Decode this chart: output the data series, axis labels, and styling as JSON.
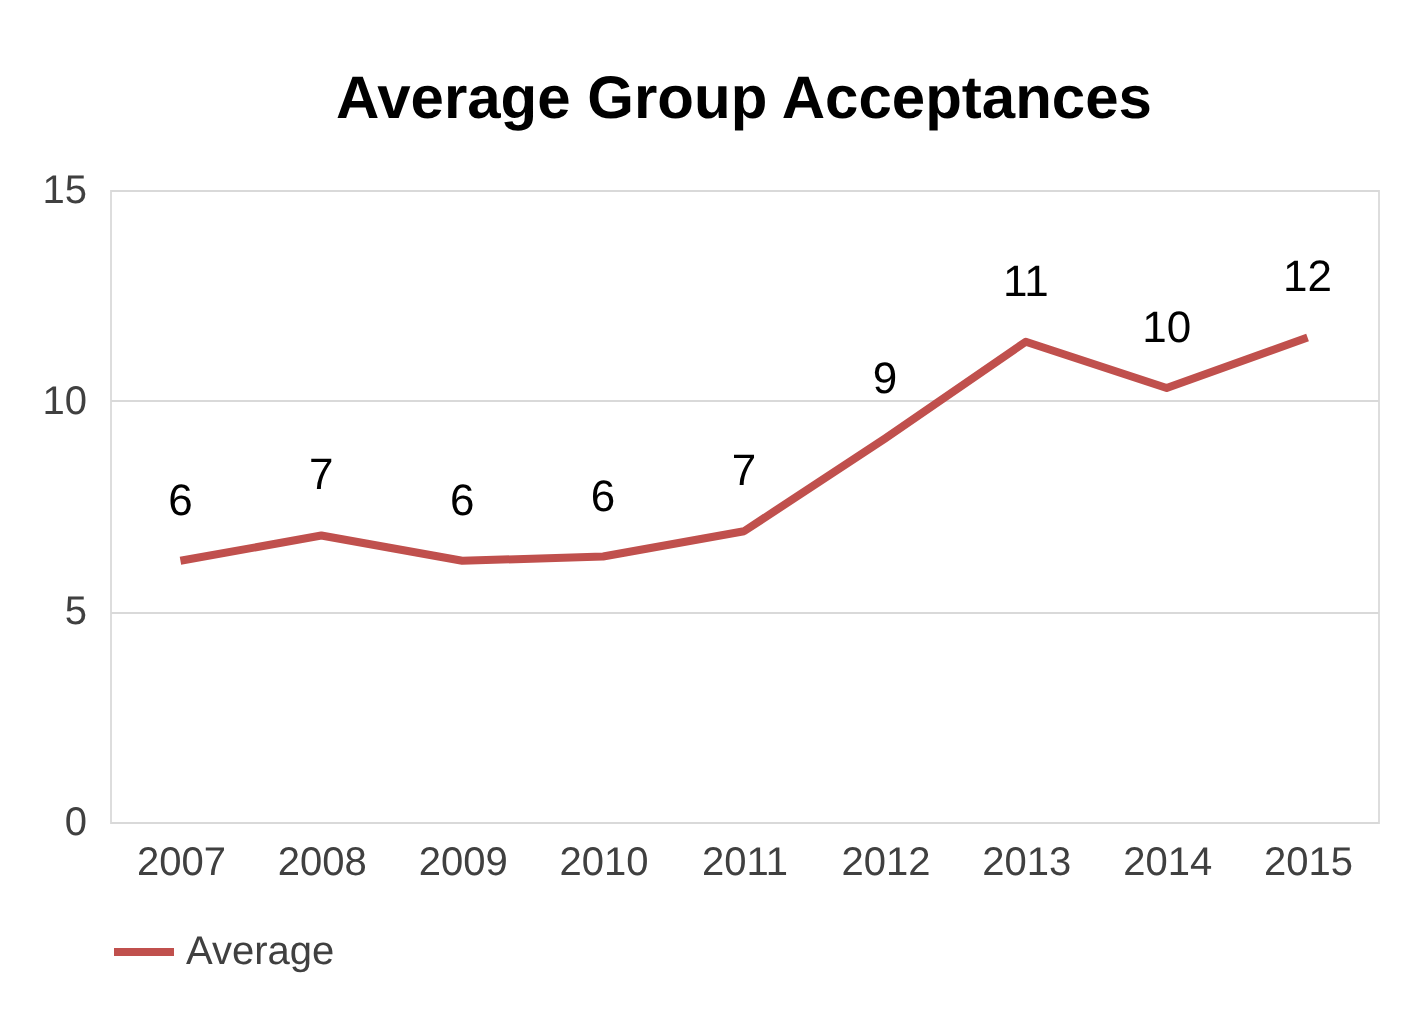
{
  "chart_data": {
    "type": "line",
    "title": "Average Group Acceptances",
    "categories": [
      "2007",
      "2008",
      "2009",
      "2010",
      "2011",
      "2012",
      "2013",
      "2014",
      "2015"
    ],
    "series": [
      {
        "name": "Average",
        "color": "#c0504d",
        "values": [
          6.2,
          6.8,
          6.2,
          6.3,
          6.9,
          9.1,
          11.4,
          10.3,
          11.5
        ],
        "value_labels": [
          "6",
          "7",
          "6",
          "6",
          "7",
          "9",
          "11",
          "10",
          "12"
        ]
      }
    ],
    "ylim": [
      0,
      15
    ],
    "yticks": [
      0,
      5,
      10,
      15
    ],
    "grid": "y",
    "legend": "bottom",
    "marker": "none",
    "line_style": "solid"
  }
}
